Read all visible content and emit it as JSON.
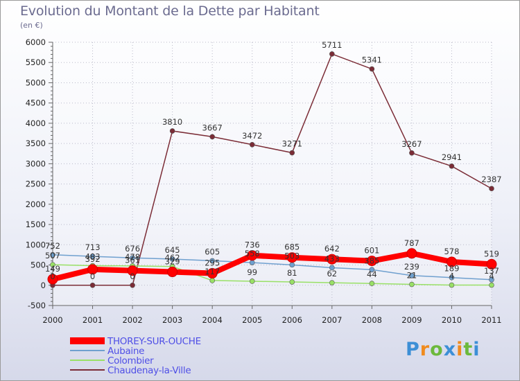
{
  "title": "Evolution du Montant de la Dette par Habitant",
  "subtitle": "(en €)",
  "brand": {
    "text": "Proxiti",
    "colors": [
      "#3d8fd6",
      "#f08b1e",
      "#6cb93c",
      "#3d8fd6",
      "#f08b1e",
      "#6cb93c",
      "#3d8fd6"
    ]
  },
  "chart_data": {
    "type": "line",
    "x": [
      "2000",
      "2001",
      "2002",
      "2003",
      "2004",
      "2005",
      "2006",
      "2007",
      "2008",
      "2009",
      "2010",
      "2011"
    ],
    "ylim": [
      -500,
      6000
    ],
    "yticks": [
      "-500",
      "0",
      "500",
      "1000",
      "1500",
      "2000",
      "2500",
      "3000",
      "3500",
      "4000",
      "4500",
      "5000",
      "5500",
      "6000"
    ],
    "legend_position": "bottom",
    "series": [
      {
        "name": "THOREY-SUR-OUCHE",
        "color": "#ff0000",
        "values": [
          149,
          392,
          361,
          329,
          295,
          736,
          685,
          642,
          601,
          787,
          578,
          519
        ],
        "labels": [
          "149",
          "392",
          "361",
          "329",
          "295",
          "736",
          "685",
          "642",
          "601",
          "787",
          "578",
          "519"
        ]
      },
      {
        "name": "Aubaine",
        "color": "#6fa0cf",
        "values": [
          752,
          713,
          676,
          645,
          605,
          558,
          503,
          433,
          385,
          239,
          189,
          137
        ],
        "labels": [
          "752",
          "713",
          "676",
          "645",
          "605",
          "558",
          "503",
          "433",
          "385",
          "239",
          "189",
          "137"
        ]
      },
      {
        "name": "Colombier",
        "color": "#99e066",
        "values": [
          507,
          483,
          478,
          462,
          117,
          99,
          81,
          62,
          44,
          21,
          4,
          4
        ],
        "labels": [
          "507",
          "483",
          "478",
          "462",
          "117",
          "99",
          "81",
          "62",
          "44",
          "21",
          "4",
          "4"
        ]
      },
      {
        "name": "Chaudenay-la-Ville",
        "color": "#7b2c36",
        "values": [
          0,
          0,
          0,
          3810,
          3667,
          3472,
          3271,
          5711,
          5341,
          3267,
          2941,
          2387
        ],
        "labels": [
          "0",
          "0",
          "0",
          "3810",
          "3667",
          "3472",
          "3271",
          "5711",
          "5341",
          "3267",
          "2941",
          "2387"
        ]
      }
    ]
  }
}
